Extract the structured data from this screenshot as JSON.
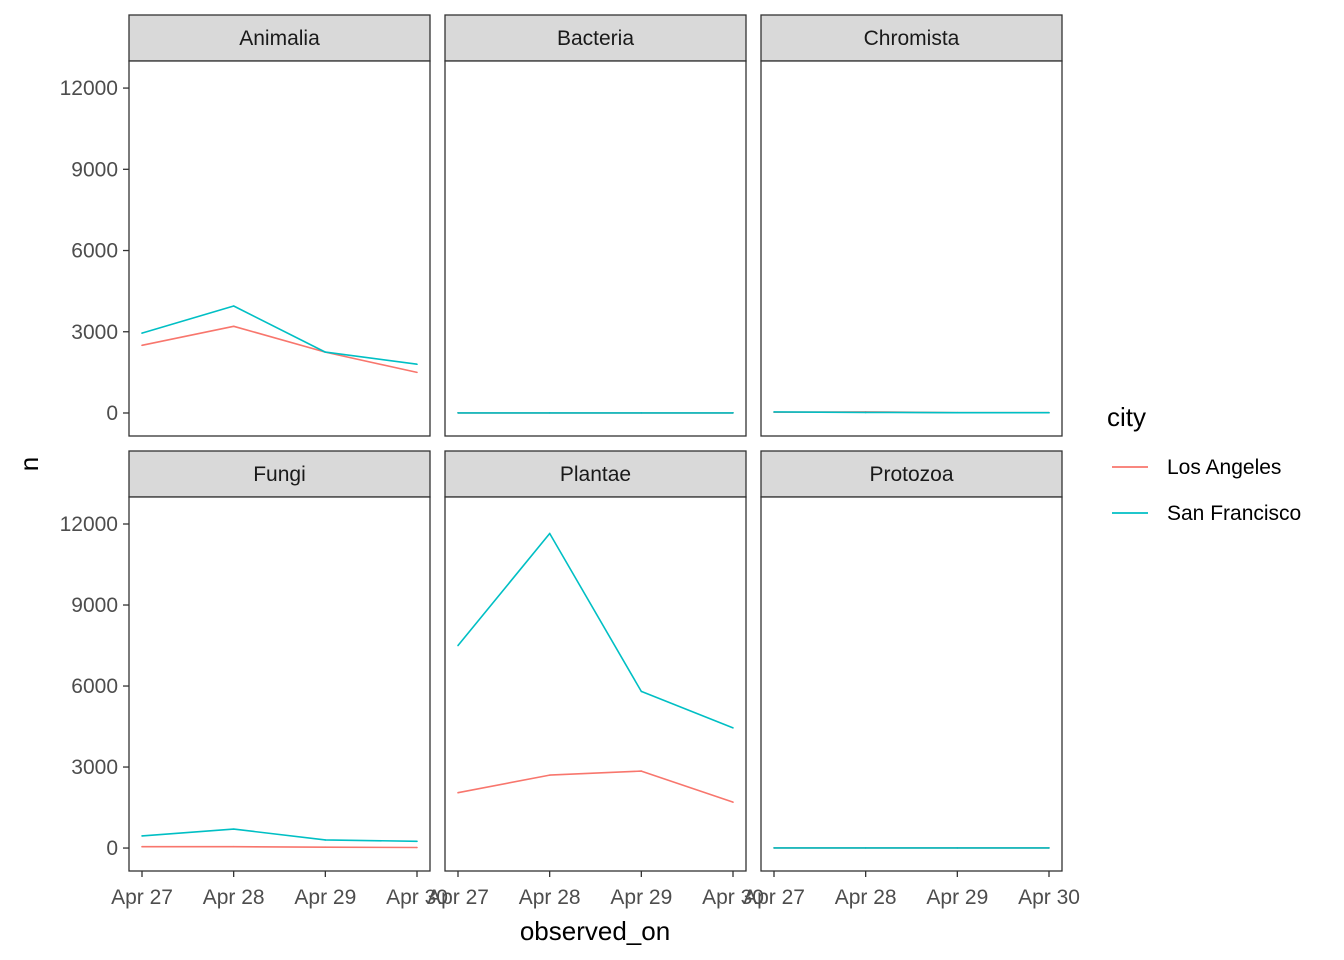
{
  "chart_data": {
    "type": "line",
    "xlabel": "observed_on",
    "ylabel": "n",
    "categories": [
      "Apr 27",
      "Apr 28",
      "Apr 29",
      "Apr 30"
    ],
    "ylim": [
      -850,
      13000
    ],
    "y_ticks": [
      0,
      3000,
      6000,
      9000,
      12000
    ],
    "grid": false,
    "legend": {
      "title": "city",
      "position": "right",
      "entries": [
        {
          "name": "Los Angeles",
          "color": "#F8766D"
        },
        {
          "name": "San Francisco",
          "color": "#00BFC4"
        }
      ]
    },
    "facets": [
      {
        "label": "Animalia",
        "series": [
          {
            "name": "Los Angeles",
            "values": [
              2500,
              3200,
              2250,
              1500
            ]
          },
          {
            "name": "San Francisco",
            "values": [
              2950,
              3950,
              2250,
              1800
            ]
          }
        ]
      },
      {
        "label": "Bacteria",
        "series": [
          {
            "name": "Los Angeles",
            "values": [
              5,
              5,
              5,
              5
            ]
          },
          {
            "name": "San Francisco",
            "values": [
              5,
              5,
              5,
              5
            ]
          }
        ]
      },
      {
        "label": "Chromista",
        "series": [
          {
            "name": "Los Angeles",
            "values": [
              30,
              40,
              10,
              10
            ]
          },
          {
            "name": "San Francisco",
            "values": [
              40,
              20,
              10,
              10
            ]
          }
        ]
      },
      {
        "label": "Fungi",
        "series": [
          {
            "name": "Los Angeles",
            "values": [
              50,
              50,
              30,
              20
            ]
          },
          {
            "name": "San Francisco",
            "values": [
              450,
              700,
              300,
              250
            ]
          }
        ]
      },
      {
        "label": "Plantae",
        "series": [
          {
            "name": "Los Angeles",
            "values": [
              2050,
              2700,
              2850,
              1700
            ]
          },
          {
            "name": "San Francisco",
            "values": [
              7500,
              11650,
              5800,
              4450
            ]
          }
        ]
      },
      {
        "label": "Protozoa",
        "series": [
          {
            "name": "Los Angeles",
            "values": [
              5,
              5,
              5,
              5
            ]
          },
          {
            "name": "San Francisco",
            "values": [
              5,
              5,
              5,
              5
            ]
          }
        ]
      }
    ]
  }
}
